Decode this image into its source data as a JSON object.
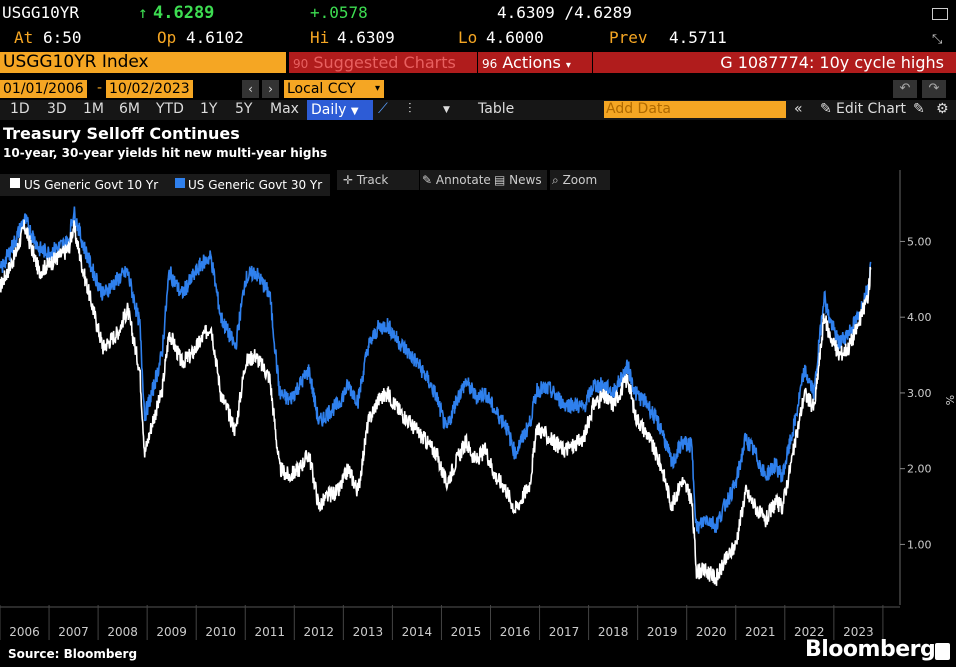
{
  "quote": {
    "ticker": "USGG10YR",
    "arrow": "↑",
    "last": "4.6289",
    "change": "+.0578",
    "bid_ask": "4.6309 /4.6289",
    "at_label": "At",
    "at_value": "6:50",
    "op_label": "Op",
    "op_value": "4.6102",
    "hi_label": "Hi",
    "hi_value": "4.6309",
    "lo_label": "Lo",
    "lo_value": "4.6000",
    "prev_label": "Prev",
    "prev_value": "4.5711"
  },
  "header": {
    "security": "USGG10YR Index",
    "suggested": "Suggested Charts",
    "actions_num": "96",
    "actions": "Actions",
    "news_headline": "G 1087774: 10y cycle highs",
    "suggested_num": "90"
  },
  "daterow": {
    "start": "01/01/2006",
    "sep": "-",
    "end": "10/02/2023",
    "currency": "Local CCY"
  },
  "toolbar": {
    "periods": [
      "1D",
      "3D",
      "1M",
      "6M",
      "YTD",
      "1Y",
      "5Y",
      "Max"
    ],
    "frequency": "Daily",
    "table": "Table",
    "add_data": "Add Data",
    "edit_chart": "Edit Chart"
  },
  "chart_buttons": {
    "track": "Track",
    "annotate": "Annotate",
    "news": "News",
    "zoom": "Zoom"
  },
  "colors": {
    "accent": "#f5a623",
    "series10": "#ffffff",
    "series30": "#2f80ed",
    "red": "#b01c1c",
    "frequency": "#2d5cd6"
  },
  "footer": {
    "source": "Source: Bloomberg",
    "brand": "Bloomberg"
  },
  "chart_data": {
    "type": "line",
    "title": "Treasury Selloff Continues",
    "subtitle": "10-year, 30-year yields hit new multi-year highs",
    "y_unit": "%",
    "ylim": [
      0.2,
      5.6
    ],
    "yticks": [
      "1.00",
      "2.00",
      "3.00",
      "4.00",
      "5.00"
    ],
    "xlim": [
      2006.0,
      2024.0
    ],
    "xticks": [
      "2006",
      "2007",
      "2008",
      "2009",
      "2010",
      "2011",
      "2012",
      "2013",
      "2014",
      "2015",
      "2016",
      "2017",
      "2018",
      "2019",
      "2020",
      "2021",
      "2022",
      "2023"
    ],
    "grid": false,
    "legend_position": "top-left",
    "series": [
      {
        "name": "US Generic Govt 10 Yr",
        "x": [
          2006.0,
          2006.3,
          2006.5,
          2006.8,
          2007.0,
          2007.4,
          2007.5,
          2007.7,
          2007.9,
          2008.1,
          2008.4,
          2008.6,
          2008.85,
          2008.95,
          2009.1,
          2009.3,
          2009.45,
          2009.7,
          2009.9,
          2010.1,
          2010.3,
          2010.5,
          2010.8,
          2011.0,
          2011.2,
          2011.5,
          2011.7,
          2011.9,
          2012.1,
          2012.3,
          2012.5,
          2012.7,
          2012.9,
          2013.1,
          2013.3,
          2013.5,
          2013.7,
          2013.9,
          2014.1,
          2014.3,
          2014.5,
          2014.7,
          2014.9,
          2015.1,
          2015.3,
          2015.5,
          2015.7,
          2015.9,
          2016.1,
          2016.3,
          2016.5,
          2016.8,
          2016.95,
          2017.2,
          2017.5,
          2017.7,
          2017.9,
          2018.1,
          2018.3,
          2018.5,
          2018.8,
          2018.95,
          2019.2,
          2019.5,
          2019.7,
          2019.9,
          2020.1,
          2020.2,
          2020.4,
          2020.6,
          2020.8,
          2021.0,
          2021.2,
          2021.4,
          2021.6,
          2021.8,
          2021.95,
          2022.2,
          2022.4,
          2022.6,
          2022.8,
          2022.9,
          2023.1,
          2023.3,
          2023.5,
          2023.7,
          2023.75
        ],
        "y": [
          4.4,
          4.8,
          5.2,
          4.6,
          4.7,
          4.9,
          5.2,
          4.6,
          4.1,
          3.6,
          3.8,
          4.1,
          3.3,
          2.2,
          2.6,
          3.0,
          3.8,
          3.4,
          3.5,
          3.7,
          3.9,
          3.0,
          2.5,
          3.4,
          3.5,
          3.2,
          2.0,
          1.9,
          2.0,
          2.2,
          1.5,
          1.65,
          1.7,
          2.0,
          1.7,
          2.6,
          2.9,
          3.0,
          2.8,
          2.65,
          2.5,
          2.35,
          2.2,
          1.8,
          2.1,
          2.35,
          2.1,
          2.25,
          1.9,
          1.75,
          1.45,
          1.8,
          2.55,
          2.4,
          2.25,
          2.3,
          2.4,
          2.85,
          2.95,
          2.85,
          3.2,
          2.7,
          2.45,
          2.0,
          1.5,
          1.85,
          1.6,
          0.65,
          0.65,
          0.55,
          0.8,
          1.0,
          1.7,
          1.5,
          1.3,
          1.55,
          1.5,
          2.3,
          3.0,
          2.8,
          4.0,
          3.8,
          3.5,
          3.6,
          3.9,
          4.3,
          4.63
        ]
      },
      {
        "name": "US Generic Govt 30 Yr",
        "x": [
          2006.0,
          2006.3,
          2006.5,
          2006.8,
          2007.0,
          2007.4,
          2007.5,
          2007.7,
          2007.9,
          2008.1,
          2008.4,
          2008.6,
          2008.85,
          2008.95,
          2009.1,
          2009.3,
          2009.45,
          2009.7,
          2009.9,
          2010.1,
          2010.3,
          2010.5,
          2010.8,
          2011.0,
          2011.2,
          2011.5,
          2011.7,
          2011.9,
          2012.1,
          2012.3,
          2012.5,
          2012.7,
          2012.9,
          2013.1,
          2013.3,
          2013.5,
          2013.7,
          2013.9,
          2014.1,
          2014.3,
          2014.5,
          2014.7,
          2014.9,
          2015.1,
          2015.3,
          2015.5,
          2015.7,
          2015.9,
          2016.1,
          2016.3,
          2016.5,
          2016.8,
          2016.95,
          2017.2,
          2017.5,
          2017.7,
          2017.9,
          2018.1,
          2018.3,
          2018.5,
          2018.8,
          2018.95,
          2019.2,
          2019.5,
          2019.7,
          2019.9,
          2020.1,
          2020.2,
          2020.4,
          2020.6,
          2020.8,
          2021.0,
          2021.2,
          2021.4,
          2021.6,
          2021.8,
          2021.95,
          2022.2,
          2022.4,
          2022.6,
          2022.8,
          2022.9,
          2023.1,
          2023.3,
          2023.5,
          2023.7,
          2023.75
        ],
        "y": [
          4.6,
          5.0,
          5.3,
          4.9,
          4.85,
          5.0,
          5.4,
          4.95,
          4.6,
          4.3,
          4.5,
          4.6,
          3.9,
          2.7,
          3.0,
          3.5,
          4.6,
          4.3,
          4.5,
          4.7,
          4.8,
          4.0,
          3.6,
          4.5,
          4.6,
          4.3,
          3.0,
          2.9,
          3.1,
          3.3,
          2.6,
          2.75,
          2.85,
          3.1,
          2.9,
          3.6,
          3.85,
          3.9,
          3.7,
          3.55,
          3.4,
          3.2,
          2.95,
          2.5,
          2.9,
          3.15,
          2.95,
          3.0,
          2.75,
          2.6,
          2.2,
          2.6,
          3.05,
          3.05,
          2.85,
          2.85,
          2.8,
          3.1,
          3.1,
          3.0,
          3.35,
          3.0,
          2.85,
          2.5,
          2.05,
          2.35,
          2.3,
          1.2,
          1.35,
          1.25,
          1.55,
          1.8,
          2.4,
          2.2,
          1.9,
          2.05,
          1.9,
          2.6,
          3.3,
          3.0,
          4.3,
          4.0,
          3.65,
          3.8,
          4.0,
          4.4,
          4.73
        ]
      }
    ]
  }
}
